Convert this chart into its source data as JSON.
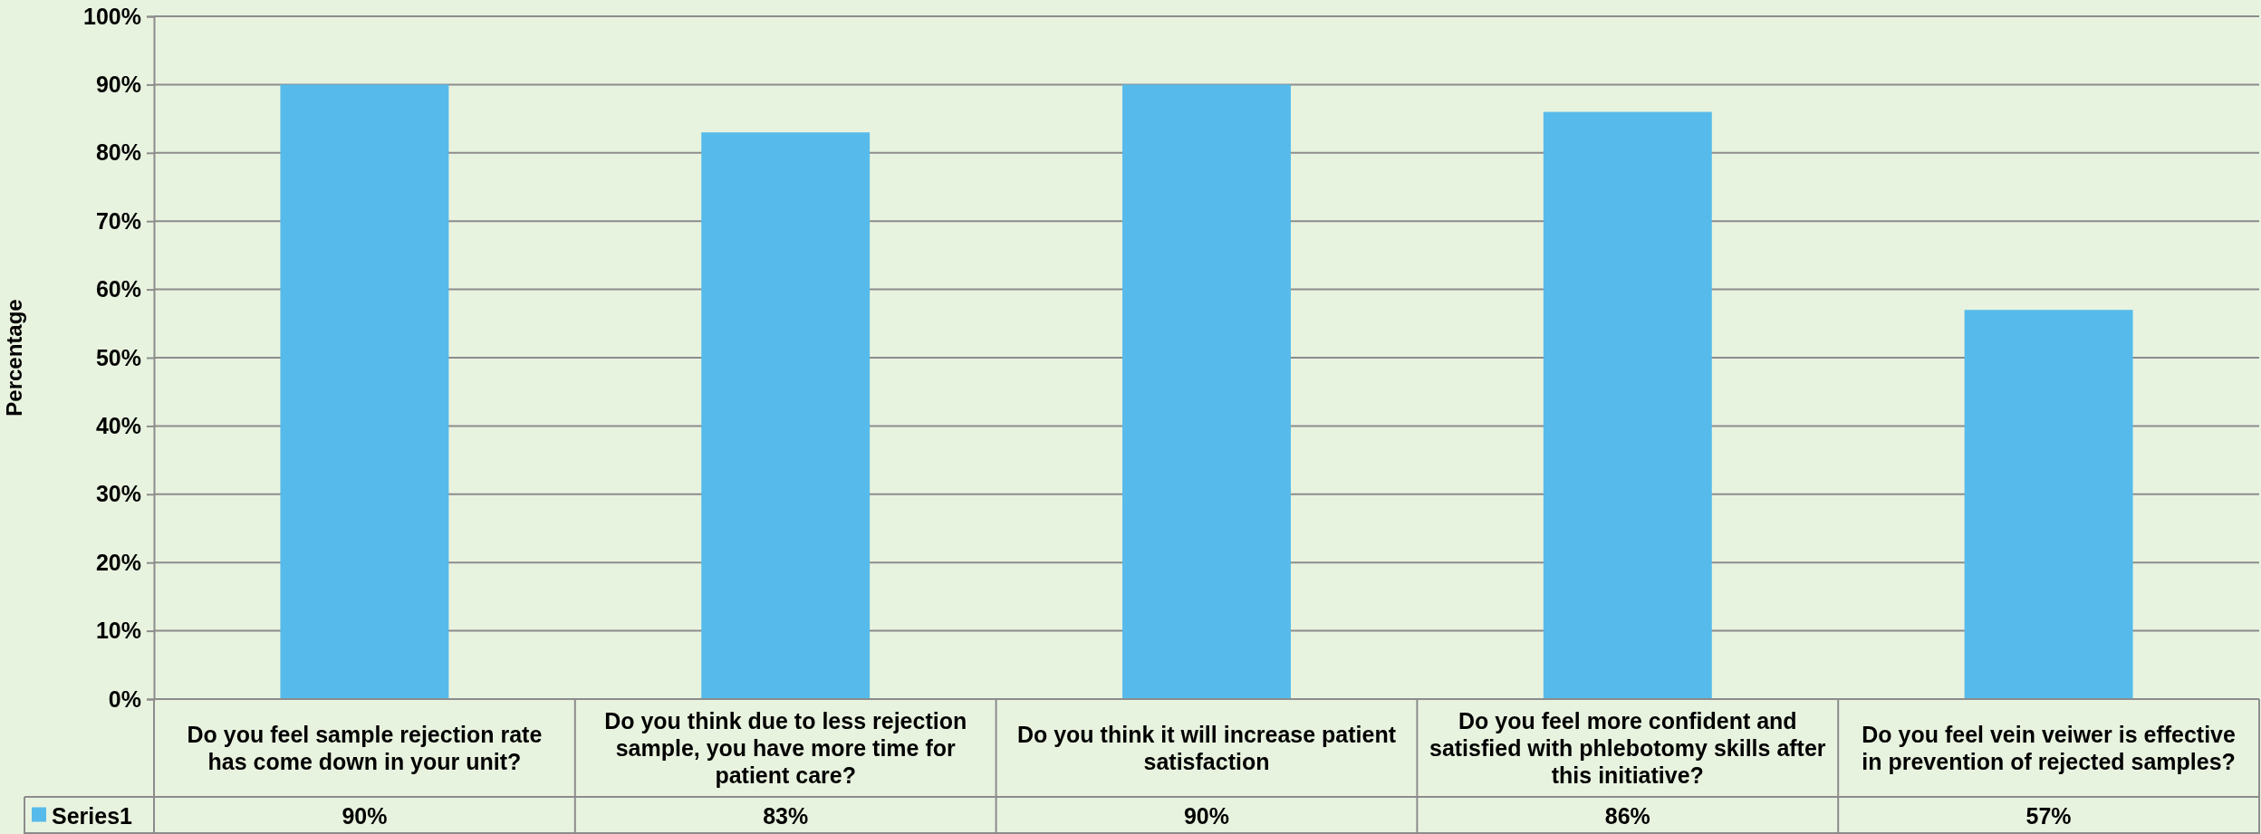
{
  "chart_data": {
    "type": "bar",
    "ylabel": "Percentage",
    "categories": [
      "Do you feel sample rejection rate has come down in your unit?",
      "Do you think due to less rejection sample, you have more time for patient care?",
      "Do you think it will increase patient satisfaction",
      "Do you feel more confident and satisfied with phlebotomy skills after this initiative?",
      "Do you feel vein veiwer is effective in prevention of rejected samples?"
    ],
    "series": [
      {
        "name": "Series1",
        "color": "#56bbeb",
        "values": [
          90,
          83,
          90,
          86,
          57
        ]
      }
    ],
    "value_labels": [
      "90%",
      "83%",
      "90%",
      "86%",
      "57%"
    ],
    "ylim": [
      0,
      100
    ],
    "yticks": [
      {
        "value": 0,
        "label": "0%"
      },
      {
        "value": 10,
        "label": "10%"
      },
      {
        "value": 20,
        "label": "20%"
      },
      {
        "value": 30,
        "label": "30%"
      },
      {
        "value": 40,
        "label": "40%"
      },
      {
        "value": 50,
        "label": "50%"
      },
      {
        "value": 60,
        "label": "60%"
      },
      {
        "value": 70,
        "label": "70%"
      },
      {
        "value": 80,
        "label": "80%"
      },
      {
        "value": 90,
        "label": "90%"
      },
      {
        "value": 100,
        "label": "100%"
      }
    ],
    "grid": "y",
    "legend": "bottom"
  }
}
